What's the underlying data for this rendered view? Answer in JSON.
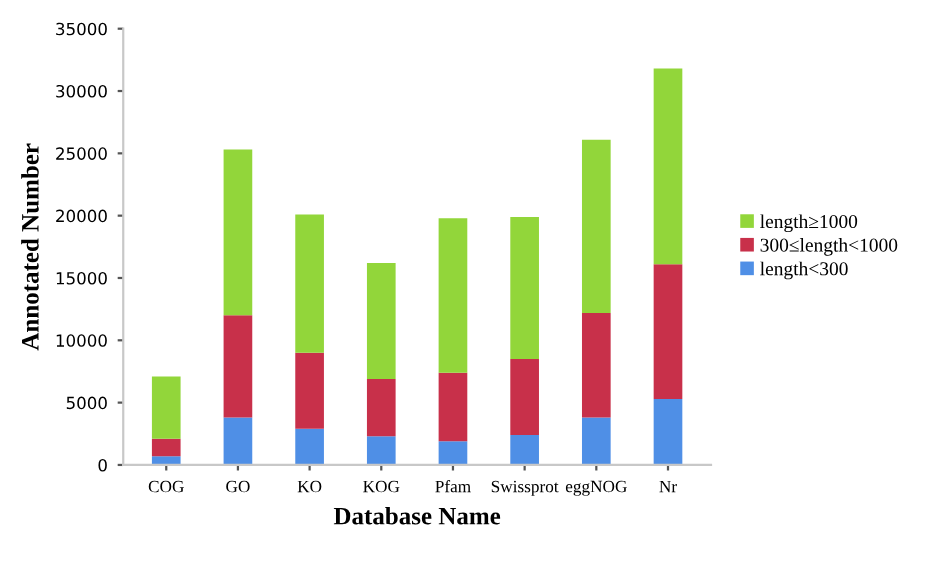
{
  "chart_data": {
    "type": "bar",
    "stacked": true,
    "xlabel": "Database Name",
    "ylabel": "Annotated Number",
    "categories": [
      "COG",
      "GO",
      "KO",
      "KOG",
      "Pfam",
      "Swissprot",
      "eggNOG",
      "Nr"
    ],
    "series": [
      {
        "name": "length<300",
        "color": "#4f8fe6",
        "values": [
          700,
          3800,
          2900,
          2300,
          1900,
          2400,
          3800,
          5300
        ]
      },
      {
        "name": "300≤length<1000",
        "color": "#c8304a",
        "values": [
          1400,
          8200,
          6100,
          4600,
          5500,
          6100,
          8400,
          10800
        ]
      },
      {
        "name": "length≥1000",
        "color": "#92d63a",
        "values": [
          5000,
          13300,
          11100,
          9300,
          12400,
          11400,
          13900,
          15700
        ]
      }
    ],
    "ylim": [
      0,
      35000
    ],
    "yticks": [
      0,
      5000,
      10000,
      15000,
      20000,
      25000,
      30000,
      35000
    ],
    "grid": false,
    "legend": "right"
  }
}
